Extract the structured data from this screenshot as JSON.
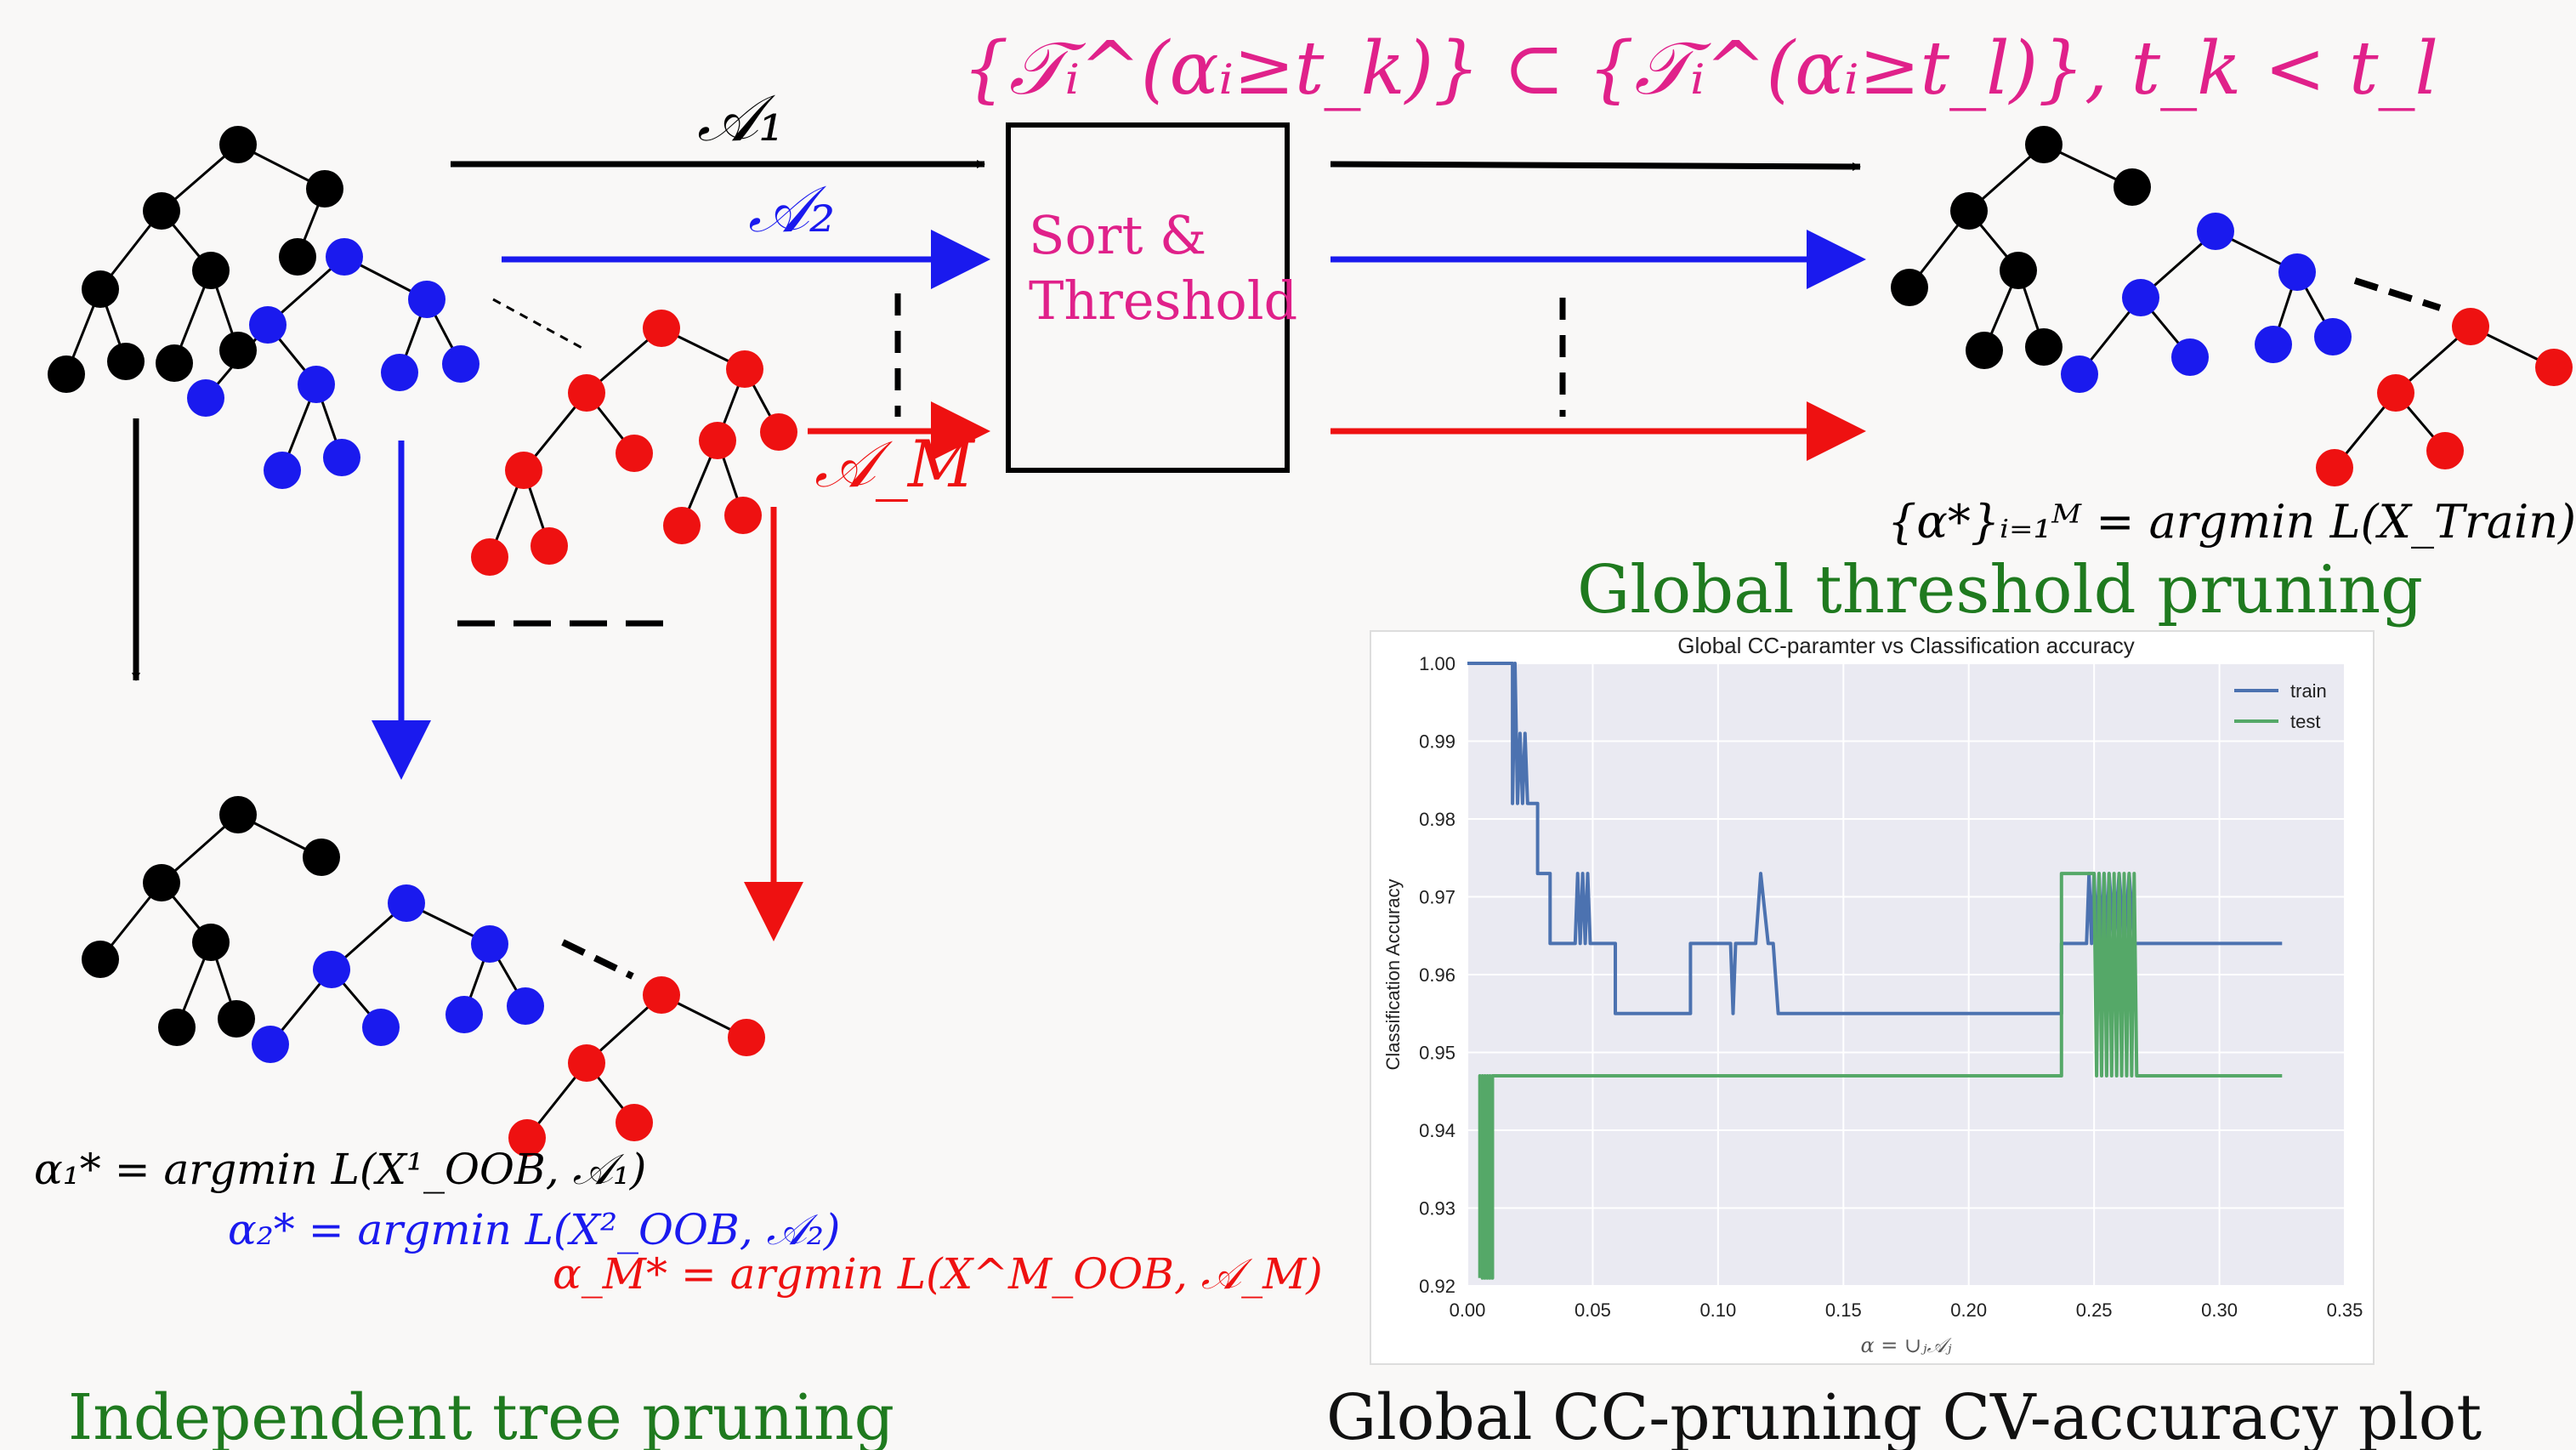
{
  "colors": {
    "background": "#f9f8f7",
    "black_nodes": "#000000",
    "blue_nodes": "#1a1aee",
    "red_nodes": "#ee1111",
    "pink_text": "#e0218a",
    "green_caption": "#1f7a1f",
    "plot_background": "#eaeaf2",
    "train_line": "#4c72b0",
    "test_line": "#55a868"
  },
  "top_formula": "{𝒯ᵢ^(αᵢ≥t_k)} ⊂ {𝒯ᵢ^(αᵢ≥t_l)}, t_k < t_l",
  "sort_box": {
    "line1": "Sort &",
    "line2": "Threshold"
  },
  "arrows": {
    "a1": "𝒜₁",
    "a2": "𝒜₂",
    "am": "𝒜_M"
  },
  "left_formulas": {
    "f1": "α₁* = argmin L(X¹_OOB, 𝒜₁)",
    "f2": "α₂* = argmin L(X²_OOB, 𝒜₂)",
    "fm": "α_M* = argmin L(X^M_OOB, 𝒜_M)"
  },
  "right_formula": "{α*}ᵢ₌₁ᴹ = argmin L(X_Train)",
  "captions": {
    "independent": "Independent tree pruning",
    "global_threshold": "Global threshold pruning",
    "cv_plot": "Global CC-pruning CV-accuracy plot"
  },
  "chart_data": {
    "type": "line",
    "title": "Global CC-paramter vs Classification accuracy",
    "xlabel": "α = ∪ⱼ𝒜ⱼ",
    "ylabel": "Classification Accuracy",
    "xlim": [
      0.0,
      0.35
    ],
    "ylim": [
      0.92,
      1.0
    ],
    "xticks": [
      "0.00",
      "0.05",
      "0.10",
      "0.15",
      "0.20",
      "0.25",
      "0.30",
      "0.35"
    ],
    "yticks": [
      "0.92",
      "0.93",
      "0.94",
      "0.95",
      "0.96",
      "0.97",
      "0.98",
      "0.99",
      "1.00"
    ],
    "grid": true,
    "legend_position": "top-right",
    "series": [
      {
        "name": "train",
        "x": [
          0.0,
          0.018,
          0.018,
          0.019,
          0.02,
          0.021,
          0.022,
          0.023,
          0.024,
          0.028,
          0.028,
          0.033,
          0.033,
          0.043,
          0.044,
          0.045,
          0.046,
          0.047,
          0.048,
          0.049,
          0.059,
          0.059,
          0.089,
          0.089,
          0.105,
          0.106,
          0.107,
          0.115,
          0.117,
          0.12,
          0.122,
          0.124,
          0.127,
          0.237,
          0.237,
          0.247,
          0.248,
          0.249,
          0.25,
          0.251,
          0.252,
          0.253,
          0.254,
          0.255,
          0.256,
          0.258,
          0.26,
          0.262,
          0.264,
          0.266,
          0.268,
          0.325
        ],
        "y": [
          1.0,
          1.0,
          0.982,
          1.0,
          0.982,
          0.991,
          0.982,
          0.991,
          0.982,
          0.982,
          0.973,
          0.973,
          0.964,
          0.964,
          0.973,
          0.964,
          0.973,
          0.964,
          0.973,
          0.964,
          0.964,
          0.955,
          0.955,
          0.964,
          0.964,
          0.955,
          0.964,
          0.964,
          0.973,
          0.964,
          0.964,
          0.955,
          0.955,
          0.955,
          0.964,
          0.964,
          0.973,
          0.964,
          0.973,
          0.964,
          0.973,
          0.964,
          0.973,
          0.964,
          0.973,
          0.964,
          0.973,
          0.964,
          0.973,
          0.964,
          0.964,
          0.964
        ]
      },
      {
        "name": "test",
        "x": [
          0.005,
          0.005,
          0.006,
          0.006,
          0.007,
          0.007,
          0.008,
          0.008,
          0.009,
          0.009,
          0.01,
          0.01,
          0.237,
          0.237,
          0.25,
          0.251,
          0.252,
          0.253,
          0.254,
          0.255,
          0.256,
          0.257,
          0.258,
          0.259,
          0.26,
          0.261,
          0.262,
          0.263,
          0.264,
          0.265,
          0.266,
          0.267,
          0.268,
          0.325
        ],
        "y": [
          0.921,
          0.947,
          0.921,
          0.947,
          0.921,
          0.947,
          0.921,
          0.947,
          0.921,
          0.947,
          0.921,
          0.947,
          0.947,
          0.973,
          0.973,
          0.947,
          0.973,
          0.947,
          0.973,
          0.947,
          0.973,
          0.947,
          0.973,
          0.947,
          0.973,
          0.947,
          0.973,
          0.947,
          0.973,
          0.947,
          0.973,
          0.947,
          0.947,
          0.947
        ]
      }
    ]
  }
}
